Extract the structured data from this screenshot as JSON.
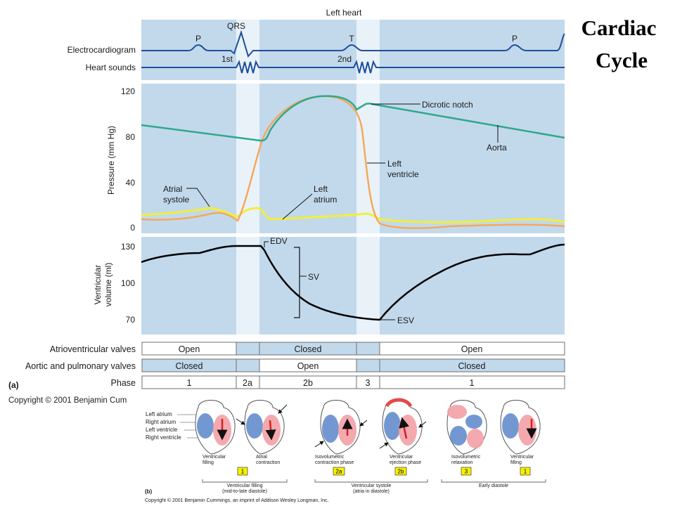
{
  "title": [
    "Cardiac",
    "Cycle"
  ],
  "panel_header": "Left heart",
  "ecg": {
    "row_labels": [
      "Electrocardiogram",
      "Heart sounds"
    ],
    "wave_labels": [
      "P",
      "QRS",
      "T",
      "P"
    ],
    "sound_labels": [
      "1st",
      "2nd"
    ]
  },
  "pressure": {
    "ylabel": "Pressure (mm Hg)",
    "ticks": [
      "120",
      "80",
      "40",
      "0"
    ],
    "annotations": {
      "dicrotic_notch": "Dicrotic notch",
      "aorta": "Aorta",
      "left_ventricle": [
        "Left",
        "ventricle"
      ],
      "left_atrium": [
        "Left",
        "atrium"
      ],
      "atrial_systole": [
        "Atrial",
        "systole"
      ]
    }
  },
  "volume": {
    "ylabel": [
      "Ventricular",
      "volume (ml)"
    ],
    "ticks": [
      "130",
      "100",
      "70"
    ],
    "annotations": {
      "edv": "EDV",
      "sv": "SV",
      "esv": "ESV"
    }
  },
  "valves": {
    "rows": [
      {
        "label": "Atrioventricular valves",
        "cells": [
          "Open",
          "",
          "Closed",
          "",
          "Open"
        ]
      },
      {
        "label": "Aortic and pulmonary valves",
        "cells": [
          "Closed",
          "",
          "Open",
          "",
          "Closed"
        ]
      },
      {
        "label": "Phase",
        "cells": [
          "1",
          "2a",
          "2b",
          "3",
          "1"
        ]
      }
    ]
  },
  "part_a": "(a)",
  "copyright_a": "Copyright © 2001 Benjamin Cum",
  "hearts": {
    "legend": [
      "Left atrium",
      "Right atrium",
      "Left ventricle",
      "Right ventricle"
    ],
    "captions": [
      [
        "Ventricular",
        "filling"
      ],
      [
        "Atrial",
        "contraction"
      ],
      [
        "Isovolumetric",
        "contraction phase"
      ],
      [
        "Ventricular",
        "ejection phase"
      ],
      [
        "Isovolumetric",
        "relaxation"
      ],
      [
        "Ventricular",
        "filling"
      ]
    ],
    "badges": [
      "1",
      "2a",
      "2b",
      "3",
      "1"
    ],
    "groups": [
      [
        "Ventricular filling",
        "(mid-to-late diastole)"
      ],
      [
        "Ventricular systole",
        "(atria in diastole)"
      ],
      [
        "Early diastole"
      ]
    ]
  },
  "part_b": "(b)",
  "copyright_b": "Copyright © 2001 Benjamin Cummings, an imprint of Addison Wesley Longman, Inc.",
  "colors": {
    "panel_blue": "#c2d9ec",
    "band_light": "#e9f2f9",
    "ecg_line": "#1f4e9c",
    "aorta": "#2fa88d",
    "left_ventricle": "#f5a85a",
    "left_atrium": "#f3ee3a",
    "volume": "#000000",
    "badge": "#f6f000"
  }
}
